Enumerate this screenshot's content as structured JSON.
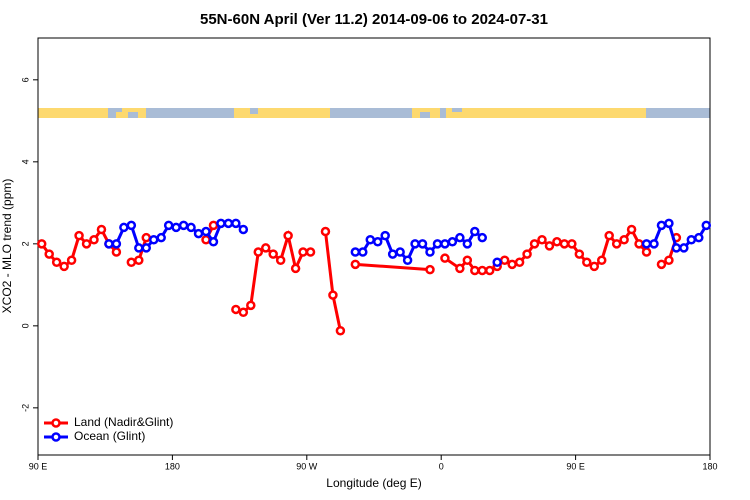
{
  "chart_data": {
    "type": "line",
    "title": "55N-60N April (Ver 11.2)   2014-09-06 to 2024-07-31",
    "x_label": "Longitude (deg E)",
    "y_label": "XCO2 - MLO trend (ppm)",
    "xlim": [
      90,
      540
    ],
    "xticks": [
      {
        "value": 90,
        "label": "90 E"
      },
      {
        "value": 180,
        "label": "180"
      },
      {
        "value": 270,
        "label": "90 W"
      },
      {
        "value": 360,
        "label": "0"
      },
      {
        "value": 450,
        "label": "90 E"
      },
      {
        "value": 540,
        "label": "180"
      }
    ],
    "ylim": [
      -3.15,
      7.02
    ],
    "yticks": [
      -2,
      0,
      2,
      4,
      6
    ],
    "legend": "bottom-left",
    "series": [
      {
        "name": "Land (Nadir&Glint)",
        "color": "#ff0000",
        "x": [
          92.5,
          97.5,
          102.5,
          107.5,
          112.5,
          117.5,
          122.5,
          127.5,
          132.5,
          137.5,
          142.5,
          147.5,
          152.5,
          157.5,
          162.5,
          167.5,
          202.5,
          207.5,
          212.5,
          222.5,
          227.5,
          232.5,
          237.5,
          242.5,
          247.5,
          252.5,
          257.5,
          262.5,
          267.5,
          272.5,
          277.5,
          282.5,
          287.5,
          292.5,
          297.5,
          302.5,
          352.5,
          357.5,
          362.5,
          372.5,
          377.5,
          382.5,
          387.5,
          392.5,
          397.5,
          402.5,
          407.5,
          412.5,
          417.5,
          422.5,
          427.5,
          432.5,
          437.5,
          442.5,
          447.5,
          452.5,
          457.5,
          462.5,
          467.5,
          472.5,
          477.5,
          482.5,
          487.5,
          492.5,
          497.5,
          502.5,
          507.5,
          512.5,
          517.5,
          522.5,
          527.5,
          532.5
        ],
        "values": [
          2.0,
          1.75,
          1.55,
          1.45,
          1.6,
          2.2,
          2.0,
          2.1,
          2.35,
          2.0,
          1.8,
          null,
          1.55,
          1.6,
          2.15,
          null,
          2.1,
          2.45,
          null,
          0.4,
          0.33,
          0.5,
          1.8,
          1.9,
          1.75,
          1.6,
          2.2,
          1.4,
          1.8,
          1.8,
          null,
          2.3,
          0.75,
          -0.12,
          null,
          1.5,
          1.37,
          null,
          1.65,
          1.4,
          1.6,
          1.35,
          1.35,
          1.35,
          1.45,
          1.6,
          1.5,
          1.55,
          1.75,
          2.0,
          2.1,
          1.95,
          2.05,
          2.0,
          2.0,
          1.75,
          1.55,
          1.45,
          1.6,
          2.2,
          2.0,
          2.1,
          2.35,
          2.0,
          1.8,
          null,
          1.5,
          1.6,
          2.15,
          null,
          null,
          null
        ]
      },
      {
        "name": "Ocean (Glint)",
        "color": "#0000ff",
        "x": [
          137.5,
          142.5,
          147.5,
          152.5,
          157.5,
          162.5,
          167.5,
          172.5,
          177.5,
          182.5,
          187.5,
          192.5,
          197.5,
          202.5,
          207.5,
          212.5,
          217.5,
          222.5,
          227.5,
          232.5,
          302.5,
          307.5,
          312.5,
          317.5,
          322.5,
          327.5,
          332.5,
          337.5,
          342.5,
          347.5,
          352.5,
          357.5,
          362.5,
          367.5,
          372.5,
          377.5,
          382.5,
          387.5,
          392.5,
          397.5,
          402.5,
          497.5,
          502.5,
          507.5,
          512.5,
          517.5,
          522.5,
          527.5,
          532.5,
          537.5
        ],
        "values": [
          2.0,
          2.0,
          2.4,
          2.45,
          1.9,
          1.9,
          2.1,
          2.15,
          2.45,
          2.4,
          2.45,
          2.4,
          2.25,
          2.3,
          2.05,
          2.5,
          2.5,
          2.5,
          2.35,
          null,
          1.8,
          1.8,
          2.1,
          2.05,
          2.2,
          1.75,
          1.8,
          1.6,
          2.0,
          2.0,
          1.8,
          2.0,
          2.0,
          2.05,
          2.15,
          2.0,
          2.3,
          2.15,
          null,
          1.55,
          null,
          2.0,
          2.0,
          2.45,
          2.5,
          1.9,
          1.9,
          2.1,
          2.15,
          2.45
        ]
      }
    ]
  }
}
